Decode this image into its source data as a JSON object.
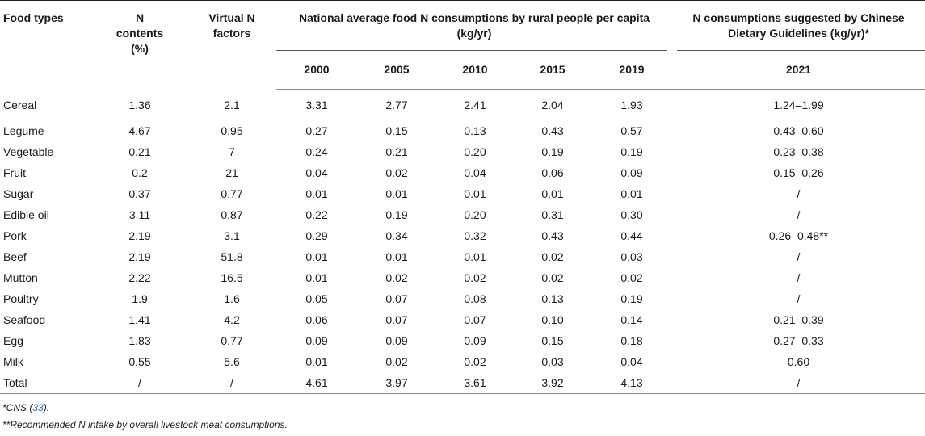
{
  "table": {
    "headers": {
      "food_types": "Food types",
      "n_contents": "N contents (%)",
      "virtual_n": "Virtual N factors",
      "national_group": "National average food N consumptions by rural people per capita (kg/yr)",
      "guideline_group": "N consumptions suggested by Chinese Dietary Guidelines (kg/yr)*",
      "years": [
        "2000",
        "2005",
        "2010",
        "2015",
        "2019"
      ],
      "guideline_year": "2021"
    },
    "rows": [
      {
        "food": "Cereal",
        "n": "1.36",
        "v": "2.1",
        "y2000": "3.31",
        "y2005": "2.77",
        "y2010": "2.41",
        "y2015": "2.04",
        "y2019": "1.93",
        "g": "1.24–1.99"
      },
      {
        "food": "Legume",
        "n": "4.67",
        "v": "0.95",
        "y2000": "0.27",
        "y2005": "0.15",
        "y2010": "0.13",
        "y2015": "0.43",
        "y2019": "0.57",
        "g": "0.43–0.60"
      },
      {
        "food": "Vegetable",
        "n": "0.21",
        "v": "7",
        "y2000": "0.24",
        "y2005": "0.21",
        "y2010": "0.20",
        "y2015": "0.19",
        "y2019": "0.19",
        "g": "0.23–0.38"
      },
      {
        "food": "Fruit",
        "n": "0.2",
        "v": "21",
        "y2000": "0.04",
        "y2005": "0.02",
        "y2010": "0.04",
        "y2015": "0.06",
        "y2019": "0.09",
        "g": "0.15–0.26"
      },
      {
        "food": "Sugar",
        "n": "0.37",
        "v": "0.77",
        "y2000": "0.01",
        "y2005": "0.01",
        "y2010": "0.01",
        "y2015": "0.01",
        "y2019": "0.01",
        "g": "/"
      },
      {
        "food": "Edible oil",
        "n": "3.11",
        "v": "0.87",
        "y2000": "0.22",
        "y2005": "0.19",
        "y2010": "0.20",
        "y2015": "0.31",
        "y2019": "0.30",
        "g": "/"
      },
      {
        "food": "Pork",
        "n": "2.19",
        "v": "3.1",
        "y2000": "0.29",
        "y2005": "0.34",
        "y2010": "0.32",
        "y2015": "0.43",
        "y2019": "0.44",
        "g": "0.26–0.48**"
      },
      {
        "food": "Beef",
        "n": "2.19",
        "v": "51.8",
        "y2000": "0.01",
        "y2005": "0.01",
        "y2010": "0.01",
        "y2015": "0.02",
        "y2019": "0.03",
        "g": "/"
      },
      {
        "food": "Mutton",
        "n": "2.22",
        "v": "16.5",
        "y2000": "0.01",
        "y2005": "0.02",
        "y2010": "0.02",
        "y2015": "0.02",
        "y2019": "0.02",
        "g": "/"
      },
      {
        "food": "Poultry",
        "n": "1.9",
        "v": "1.6",
        "y2000": "0.05",
        "y2005": "0.07",
        "y2010": "0.08",
        "y2015": "0.13",
        "y2019": "0.19",
        "g": "/"
      },
      {
        "food": "Seafood",
        "n": "1.41",
        "v": "4.2",
        "y2000": "0.06",
        "y2005": "0.07",
        "y2010": "0.07",
        "y2015": "0.10",
        "y2019": "0.14",
        "g": "0.21–0.39"
      },
      {
        "food": "Egg",
        "n": "1.83",
        "v": "0.77",
        "y2000": "0.09",
        "y2005": "0.09",
        "y2010": "0.09",
        "y2015": "0.15",
        "y2019": "0.18",
        "g": "0.27–0.33"
      },
      {
        "food": "Milk",
        "n": "0.55",
        "v": "5.6",
        "y2000": "0.01",
        "y2005": "0.02",
        "y2010": "0.02",
        "y2015": "0.03",
        "y2019": "0.04",
        "g": "0.60"
      },
      {
        "food": "Total",
        "n": "/",
        "v": "/",
        "y2000": "4.61",
        "y2005": "3.97",
        "y2010": "3.61",
        "y2015": "3.92",
        "y2019": "4.13",
        "g": "/"
      }
    ]
  },
  "footnotes": {
    "note1_prefix": "*CNS (",
    "note1_ref": "33",
    "note1_suffix": ").",
    "note2": "**Recommended N intake by overall livestock meat consumptions."
  }
}
